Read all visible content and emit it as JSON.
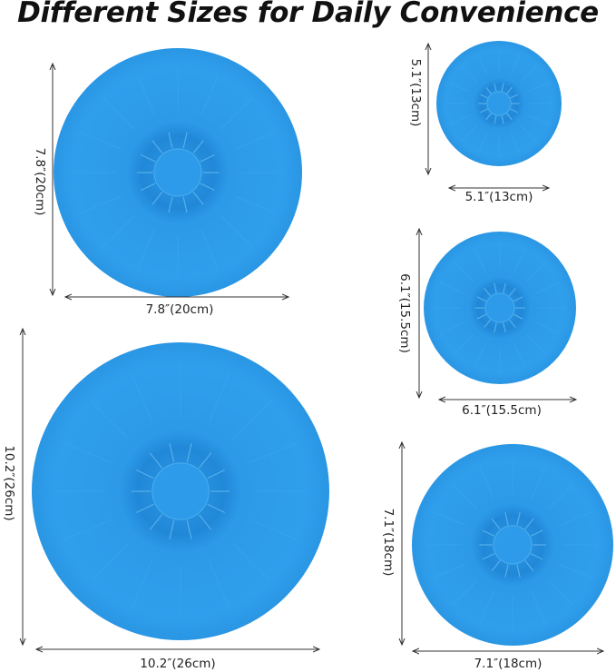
{
  "title": "Different Sizes for Daily Convenience",
  "colors": {
    "lid": "#2b9be8",
    "lid_dark": "#1f86d6",
    "lid_light": "#4fb0f0"
  },
  "lids": [
    {
      "height_label": "7.8″(20cm)",
      "width_label": "7.8″(20cm)"
    },
    {
      "height_label": "10.2″(26cm)",
      "width_label": "10.2″(26cm)"
    },
    {
      "height_label": "5.1″(13cm)",
      "width_label": "5.1″(13cm)"
    },
    {
      "height_label": "6.1″(15.5cm)",
      "width_label": "6.1″(15.5cm)"
    },
    {
      "height_label": "7.1″(18cm)",
      "width_label": "7.1″(18cm)"
    }
  ]
}
